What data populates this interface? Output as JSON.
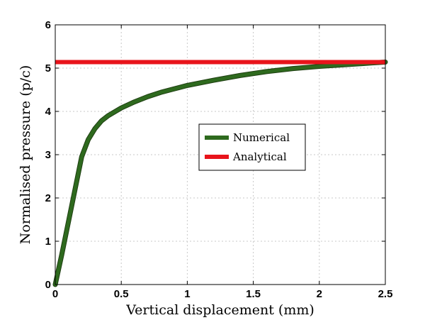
{
  "chart_data": {
    "type": "line",
    "title": "",
    "xlabel": "Vertical displacement (mm)",
    "ylabel": "Normalised pressure (p/c)",
    "xlim": [
      0,
      2.5
    ],
    "ylim": [
      0,
      6
    ],
    "xticks": [
      0,
      0.5,
      1,
      1.5,
      2,
      2.5
    ],
    "yticks": [
      0,
      1,
      2,
      3,
      4,
      5,
      6
    ],
    "xtick_labels": [
      "0",
      "0.5",
      "1",
      "1.5",
      "2",
      "2.5"
    ],
    "ytick_labels": [
      "0",
      "1",
      "2",
      "3",
      "4",
      "5",
      "6"
    ],
    "grid": true,
    "legend_position": "center-right",
    "series": [
      {
        "name": "Numerical",
        "color": "#2e6a1e",
        "x": [
          0,
          0.05,
          0.1,
          0.15,
          0.2,
          0.25,
          0.3,
          0.35,
          0.4,
          0.5,
          0.6,
          0.7,
          0.8,
          0.9,
          1.0,
          1.2,
          1.4,
          1.6,
          1.8,
          2.0,
          2.2,
          2.4,
          2.5
        ],
        "y": [
          0,
          0.7,
          1.45,
          2.2,
          2.95,
          3.35,
          3.6,
          3.78,
          3.9,
          4.08,
          4.22,
          4.34,
          4.44,
          4.52,
          4.6,
          4.72,
          4.83,
          4.92,
          4.99,
          5.04,
          5.08,
          5.12,
          5.14
        ]
      },
      {
        "name": "Analytical",
        "color": "#e8141b",
        "x": [
          0,
          2.5
        ],
        "y": [
          5.14,
          5.14
        ]
      }
    ]
  }
}
